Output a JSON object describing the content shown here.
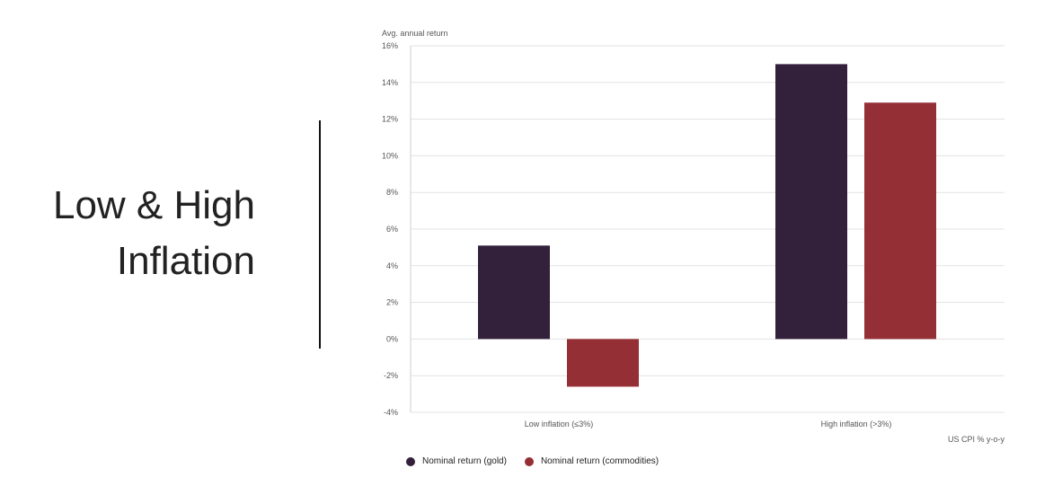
{
  "slide": {
    "title_line1": "Low & High",
    "title_line2": "Inflation"
  },
  "colors": {
    "gold": "#33203b",
    "commodities": "#952f36",
    "grid": "#e3e3e3",
    "axis_text": "#555555"
  },
  "chart_data": {
    "type": "bar",
    "title": "",
    "ylabel": "Avg. annual return",
    "xlabel": "US CPI % y-o-y",
    "ylim": [
      -4,
      16
    ],
    "yticks": [
      16,
      14,
      12,
      10,
      8,
      6,
      4,
      2,
      0,
      -2,
      -4
    ],
    "ytick_labels": [
      "16%",
      "14%",
      "12%",
      "10%",
      "8%",
      "6%",
      "4%",
      "2%",
      "0%",
      "-2%",
      "-4%"
    ],
    "categories": [
      "Low inflation (≤3%)",
      "High inflation (>3%)"
    ],
    "series": [
      {
        "name": "Nominal return (gold)",
        "values": [
          5.1,
          15.0
        ],
        "color": "#33203b"
      },
      {
        "name": "Nominal return (commodities)",
        "values": [
          -2.6,
          12.9
        ],
        "color": "#952f36"
      }
    ],
    "grid": true,
    "legend_position": "bottom-left"
  }
}
